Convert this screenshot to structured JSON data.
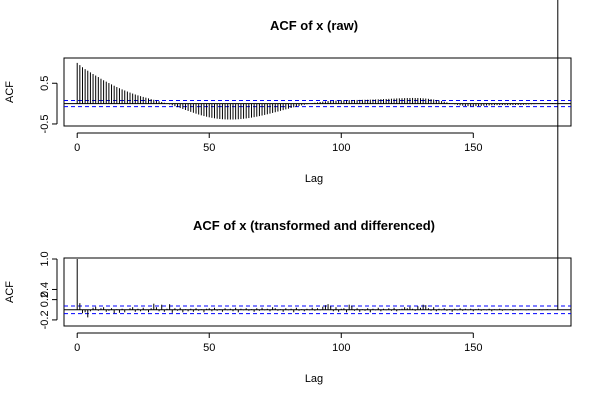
{
  "colors": {
    "spike": "#000000",
    "zero_line": "#000000",
    "ci_line": "#0000ff",
    "frame": "#000000"
  },
  "chart_data": [
    {
      "type": "bar",
      "subtype": "acf-lollipop",
      "title": "ACF of x (raw)",
      "xlabel": "Lag",
      "ylabel": "ACF",
      "xlim": [
        -5,
        187
      ],
      "ylim": [
        -0.55,
        1.12
      ],
      "xticks": [
        0,
        50,
        100,
        150
      ],
      "xtick_labels": [
        "0",
        "50",
        "100",
        "150"
      ],
      "yticks": [
        -0.5,
        0.5
      ],
      "ytick_labels": [
        "-0.5",
        "0.5"
      ],
      "ci": 0.075,
      "lags": [
        0,
        1,
        2,
        3,
        4,
        5,
        6,
        7,
        8,
        9,
        10,
        11,
        12,
        13,
        14,
        15,
        16,
        17,
        18,
        19,
        20,
        21,
        22,
        23,
        24,
        25,
        26,
        27,
        28,
        29,
        30,
        31,
        32,
        33,
        34,
        35,
        36,
        37,
        38,
        39,
        40,
        41,
        42,
        43,
        44,
        45,
        46,
        47,
        48,
        49,
        50,
        51,
        52,
        53,
        54,
        55,
        56,
        57,
        58,
        59,
        60,
        61,
        62,
        63,
        64,
        65,
        66,
        67,
        68,
        69,
        70,
        71,
        72,
        73,
        74,
        75,
        76,
        77,
        78,
        79,
        80,
        81,
        82,
        83,
        84,
        85,
        86,
        87,
        88,
        89,
        90,
        91,
        92,
        93,
        94,
        95,
        96,
        97,
        98,
        99,
        100,
        101,
        102,
        103,
        104,
        105,
        106,
        107,
        108,
        109,
        110,
        111,
        112,
        113,
        114,
        115,
        116,
        117,
        118,
        119,
        120,
        121,
        122,
        123,
        124,
        125,
        126,
        127,
        128,
        129,
        130,
        131,
        132,
        133,
        134,
        135,
        136,
        137,
        138,
        139,
        140,
        141,
        142,
        143,
        144,
        145,
        146,
        147,
        148,
        149,
        150,
        151,
        152,
        153,
        154,
        155,
        156,
        157,
        158,
        159,
        160,
        161,
        162,
        163,
        164,
        165,
        166,
        167,
        168,
        169,
        170,
        171,
        172,
        173,
        174,
        175,
        176,
        177,
        178,
        179,
        180,
        181,
        182
      ],
      "values": [
        1.0,
        0.946,
        0.893,
        0.846,
        0.808,
        0.767,
        0.727,
        0.689,
        0.652,
        0.611,
        0.573,
        0.539,
        0.505,
        0.472,
        0.439,
        0.407,
        0.378,
        0.349,
        0.323,
        0.296,
        0.271,
        0.247,
        0.224,
        0.202,
        0.183,
        0.164,
        0.146,
        0.128,
        0.11,
        0.093,
        0.075,
        0.058,
        0.04,
        0.021,
        0.001,
        -0.02,
        -0.042,
        -0.064,
        -0.087,
        -0.11,
        -0.133,
        -0.157,
        -0.18,
        -0.203,
        -0.225,
        -0.247,
        -0.268,
        -0.288,
        -0.306,
        -0.322,
        -0.337,
        -0.35,
        -0.361,
        -0.37,
        -0.378,
        -0.384,
        -0.388,
        -0.39,
        -0.391,
        -0.39,
        -0.388,
        -0.384,
        -0.379,
        -0.372,
        -0.364,
        -0.355,
        -0.345,
        -0.333,
        -0.321,
        -0.307,
        -0.293,
        -0.278,
        -0.262,
        -0.246,
        -0.229,
        -0.212,
        -0.195,
        -0.177,
        -0.16,
        -0.142,
        -0.125,
        -0.108,
        -0.091,
        -0.075,
        -0.059,
        -0.044,
        -0.029,
        -0.015,
        -0.002,
        0.01,
        0.021,
        0.031,
        0.04,
        0.049,
        0.056,
        0.062,
        0.067,
        0.071,
        0.075,
        0.078,
        0.081,
        0.083,
        0.085,
        0.087,
        0.088,
        0.089,
        0.09,
        0.091,
        0.093,
        0.094,
        0.096,
        0.098,
        0.1,
        0.102,
        0.105,
        0.108,
        0.111,
        0.114,
        0.117,
        0.12,
        0.124,
        0.127,
        0.13,
        0.133,
        0.135,
        0.137,
        0.138,
        0.139,
        0.138,
        0.137,
        0.134,
        0.13,
        0.125,
        0.118,
        0.11,
        0.1,
        0.089,
        0.076,
        0.062,
        0.046,
        0.03,
        0.014,
        -0.002,
        -0.017,
        -0.031,
        -0.043,
        -0.052,
        -0.059,
        -0.063,
        -0.065,
        -0.065,
        -0.063,
        -0.06,
        -0.056,
        -0.052,
        -0.048,
        -0.044,
        -0.041,
        -0.039,
        -0.037,
        -0.036,
        -0.036,
        -0.036,
        -0.036,
        -0.036,
        -0.036,
        -0.035,
        -0.034,
        -0.032,
        -0.029,
        -0.026,
        -0.022,
        -0.018,
        -0.014,
        -0.009,
        -0.005,
        -0.001,
        0.003,
        0.006,
        0.008,
        0.01,
        0.011,
        0.011,
        0.01,
        0.009
      ]
    },
    {
      "type": "bar",
      "subtype": "acf-lollipop",
      "title": "ACF of x (transformed and differenced)",
      "xlabel": "Lag",
      "ylabel": "ACF",
      "xlim": [
        -5,
        187
      ],
      "ylim": [
        -0.32,
        1.02
      ],
      "xticks": [
        0,
        50,
        100,
        150
      ],
      "xtick_labels": [
        "0",
        "50",
        "100",
        "150"
      ],
      "yticks": [
        -0.2,
        0.2,
        0.4,
        1.0
      ],
      "ytick_labels": [
        "-0.2",
        "0.2",
        "0.4",
        "1.0"
      ],
      "ci": 0.075,
      "lags": [
        0,
        1,
        2,
        3,
        4,
        5,
        6,
        7,
        8,
        9,
        10,
        11,
        12,
        13,
        14,
        15,
        16,
        17,
        18,
        19,
        20,
        21,
        22,
        23,
        24,
        25,
        26,
        27,
        28,
        29,
        30,
        31,
        32,
        33,
        34,
        35,
        36,
        37,
        38,
        39,
        40,
        41,
        42,
        43,
        44,
        45,
        46,
        47,
        48,
        49,
        50,
        51,
        52,
        53,
        54,
        55,
        56,
        57,
        58,
        59,
        60,
        61,
        62,
        63,
        64,
        65,
        66,
        67,
        68,
        69,
        70,
        71,
        72,
        73,
        74,
        75,
        76,
        77,
        78,
        79,
        80,
        81,
        82,
        83,
        84,
        85,
        86,
        87,
        88,
        89,
        90,
        91,
        92,
        93,
        94,
        95,
        96,
        97,
        98,
        99,
        100,
        101,
        102,
        103,
        104,
        105,
        106,
        107,
        108,
        109,
        110,
        111,
        112,
        113,
        114,
        115,
        116,
        117,
        118,
        119,
        120,
        121,
        122,
        123,
        124,
        125,
        126,
        127,
        128,
        129,
        130,
        131,
        132,
        133,
        134,
        135,
        136,
        137,
        138,
        139,
        140,
        141,
        142,
        143,
        144,
        145,
        146,
        147,
        148,
        149,
        150,
        151,
        152,
        153,
        154,
        155,
        156,
        157,
        158,
        159,
        160,
        161,
        162,
        163,
        164,
        165,
        166,
        167,
        168,
        169,
        170,
        171,
        172,
        173,
        174,
        175,
        176,
        177,
        178,
        179,
        180,
        181,
        182
      ],
      "values": [
        1.0,
        0.13,
        -0.07,
        -0.05,
        -0.15,
        -0.03,
        0.04,
        0.06,
        -0.02,
        0.03,
        0.05,
        -0.04,
        -0.02,
        0.03,
        -0.07,
        0.01,
        -0.06,
        0.02,
        -0.05,
        0.0,
        0.03,
        0.05,
        -0.04,
        0.02,
        -0.03,
        0.04,
        -0.01,
        -0.05,
        0.03,
        0.12,
        0.05,
        -0.03,
        0.1,
        -0.04,
        0.02,
        0.11,
        -0.06,
        0.03,
        -0.02,
        0.04,
        -0.05,
        0.01,
        -0.03,
        0.02,
        -0.04,
        0.03,
        -0.02,
        0.01,
        -0.05,
        0.02,
        0.03,
        -0.03,
        0.04,
        -0.02,
        0.01,
        -0.04,
        0.03,
        -0.01,
        0.02,
        -0.03,
        0.04,
        -0.05,
        0.02,
        -0.01,
        0.03,
        -0.02,
        0.01,
        -0.04,
        0.03,
        -0.02,
        0.04,
        -0.01,
        0.02,
        -0.03,
        0.05,
        0.03,
        -0.02,
        0.01,
        -0.04,
        0.03,
        -0.01,
        0.02,
        -0.05,
        0.04,
        -0.02,
        0.01,
        -0.03,
        0.02,
        -0.01,
        0.04,
        -0.02,
        0.03,
        -0.01,
        0.06,
        0.09,
        0.11,
        0.07,
        -0.03,
        0.05,
        -0.04,
        0.02,
        0.03,
        -0.05,
        0.1,
        0.08,
        -0.02,
        0.03,
        -0.04,
        0.01,
        -0.02,
        0.03,
        -0.05,
        0.02,
        -0.01,
        0.04,
        -0.03,
        0.02,
        -0.01,
        0.03,
        -0.02,
        0.04,
        -0.03,
        0.01,
        0.02,
        0.05,
        0.03,
        0.06,
        0.02,
        -0.02,
        0.07,
        0.04,
        0.1,
        0.09,
        0.03,
        -0.02,
        0.05,
        -0.03,
        0.02,
        -0.01,
        0.03,
        -0.02,
        0.01,
        -0.04,
        0.02,
        -0.01,
        0.03,
        -0.02,
        0.02,
        -0.01,
        0.02,
        -0.03,
        0.01,
        0.02,
        -0.02,
        0.01,
        -0.01,
        0.02,
        -0.03,
        0.01,
        -0.01,
        0.02,
        -0.02,
        0.01,
        0.0,
        0.01,
        -0.02,
        0.01,
        -0.01,
        0.01,
        0.0,
        -0.01,
        0.01,
        0.0,
        -0.01,
        0.0,
        0.01,
        -0.01,
        0.0,
        0.01,
        0.0,
        0.0,
        0.0
      ]
    }
  ]
}
